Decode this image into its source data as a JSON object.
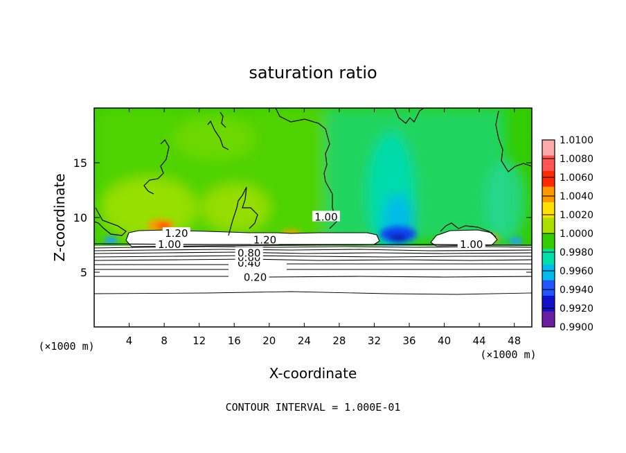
{
  "chart_data": {
    "type": "heatmap",
    "title": "saturation ratio",
    "xlabel": "X-coordinate",
    "ylabel": "Z-coordinate",
    "x_unit_left": "(×1000 m)",
    "x_unit_right": "(×1000 m)",
    "xlim": [
      0,
      50
    ],
    "ylim": [
      0,
      20
    ],
    "x_ticks": [
      4,
      8,
      12,
      16,
      20,
      24,
      28,
      32,
      36,
      40,
      44,
      48
    ],
    "y_ticks": [
      5,
      10,
      15
    ],
    "colorbar": {
      "levels": [
        1.01,
        1.008,
        1.006,
        1.004,
        1.002,
        1.0,
        0.998,
        0.996,
        0.994,
        0.992,
        0.99
      ],
      "labels": [
        "1.0100",
        "1.0080",
        "1.0060",
        "1.0040",
        "1.0020",
        "1.0000",
        "0.9980",
        "0.9960",
        "0.9940",
        "0.9920",
        "0.9900"
      ],
      "colors": [
        "#ffaaaa",
        "#ff5555",
        "#ff2a00",
        "#ff9900",
        "#ffe100",
        "#aae000",
        "#33cc00",
        "#00e0aa",
        "#00bbee",
        "#2255ff",
        "#1111cc",
        "#6a1fa0"
      ]
    },
    "contour_labels": [
      {
        "text": "0.20",
        "x": 18.4,
        "z": 4.6
      },
      {
        "text": "0.40",
        "x": 17.7,
        "z": 5.9
      },
      {
        "text": "0.60",
        "x": 17.7,
        "z": 6.4
      },
      {
        "text": "0.80",
        "x": 17.7,
        "z": 6.8
      },
      {
        "text": "1.00",
        "x": 8.6,
        "z": 7.6
      },
      {
        "text": "1.00",
        "x": 43.1,
        "z": 7.6
      },
      {
        "text": "1.00",
        "x": 26.5,
        "z": 10.1
      },
      {
        "text": "1.20",
        "x": 9.4,
        "z": 8.6
      },
      {
        "text": "1.20",
        "x": 19.5,
        "z": 8.0
      }
    ],
    "contour_interval_text": "CONTOUR INTERVAL = 1.000E-01"
  }
}
